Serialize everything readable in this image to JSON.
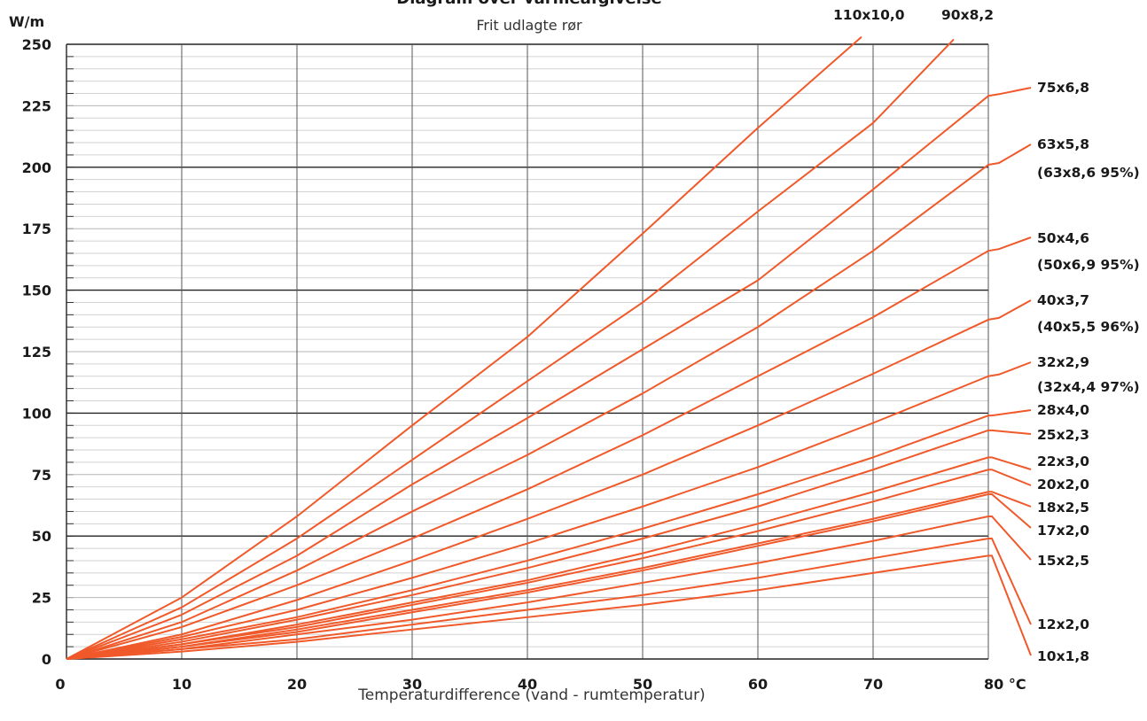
{
  "chart_data": {
    "type": "line",
    "title": "Diagram over varmeafgivelse",
    "subtitle": "Frit udlagte rør",
    "ylabel": "W/m",
    "xlabel": "Temperaturdifference (vand - rumtemperatur)",
    "x_unit_label": "80 °C",
    "xlim": [
      0,
      80
    ],
    "ylim": [
      0,
      250
    ],
    "x_ticks": [
      "0",
      "10",
      "20",
      "30",
      "40",
      "50",
      "60",
      "70"
    ],
    "y_ticks": [
      "0",
      "25",
      "50",
      "75",
      "100",
      "125",
      "150",
      "175",
      "200",
      "225",
      "250"
    ],
    "grid": true,
    "line_color": "#f0592a",
    "series": [
      {
        "name": "110x10,0",
        "points": [
          [
            0,
            0
          ],
          [
            10,
            25
          ],
          [
            20,
            58
          ],
          [
            30,
            95
          ],
          [
            40,
            131
          ],
          [
            50,
            173
          ],
          [
            60,
            216
          ],
          [
            69,
            253
          ]
        ]
      },
      {
        "name": "90x8,2",
        "points": [
          [
            0,
            0
          ],
          [
            10,
            21
          ],
          [
            20,
            49
          ],
          [
            30,
            81
          ],
          [
            40,
            113
          ],
          [
            50,
            145
          ],
          [
            60,
            182
          ],
          [
            70,
            218
          ],
          [
            77,
            252
          ]
        ]
      },
      {
        "name": "75x6,8",
        "points": [
          [
            0,
            0
          ],
          [
            10,
            18
          ],
          [
            20,
            42
          ],
          [
            30,
            71
          ],
          [
            40,
            98
          ],
          [
            50,
            126
          ],
          [
            60,
            154
          ],
          [
            70,
            191
          ],
          [
            80,
            229
          ]
        ]
      },
      {
        "name": "63x5,8",
        "extra": "(63x8,6 95%)",
        "points": [
          [
            0,
            0
          ],
          [
            10,
            15
          ],
          [
            20,
            36
          ],
          [
            30,
            60
          ],
          [
            40,
            83
          ],
          [
            50,
            108
          ],
          [
            60,
            135
          ],
          [
            70,
            166
          ],
          [
            80,
            201
          ]
        ]
      },
      {
        "name": "50x4,6",
        "extra": "(50x6,9 95%)",
        "points": [
          [
            0,
            0
          ],
          [
            10,
            13
          ],
          [
            20,
            30
          ],
          [
            30,
            49
          ],
          [
            40,
            69
          ],
          [
            50,
            91
          ],
          [
            60,
            115
          ],
          [
            70,
            139
          ],
          [
            80,
            166
          ]
        ]
      },
      {
        "name": "40x3,7",
        "extra": "(40x5,5 96%)",
        "points": [
          [
            0,
            0
          ],
          [
            10,
            10
          ],
          [
            20,
            24
          ],
          [
            30,
            40
          ],
          [
            40,
            57
          ],
          [
            50,
            75
          ],
          [
            60,
            95
          ],
          [
            70,
            116
          ],
          [
            80,
            138
          ]
        ]
      },
      {
        "name": "32x2,9",
        "extra": "(32x4,4 97%)",
        "points": [
          [
            0,
            0
          ],
          [
            10,
            9
          ],
          [
            20,
            20
          ],
          [
            30,
            33
          ],
          [
            40,
            47
          ],
          [
            50,
            62
          ],
          [
            60,
            78
          ],
          [
            70,
            96
          ],
          [
            80,
            115
          ]
        ]
      },
      {
        "name": "28x4,0",
        "points": [
          [
            0,
            0
          ],
          [
            10,
            8
          ],
          [
            20,
            17
          ],
          [
            30,
            28
          ],
          [
            40,
            40
          ],
          [
            50,
            53
          ],
          [
            60,
            67
          ],
          [
            70,
            82
          ],
          [
            80,
            99
          ]
        ]
      },
      {
        "name": "25x2,3",
        "points": [
          [
            0,
            0
          ],
          [
            10,
            7
          ],
          [
            20,
            16
          ],
          [
            30,
            26
          ],
          [
            40,
            37
          ],
          [
            50,
            49
          ],
          [
            60,
            62
          ],
          [
            70,
            77
          ],
          [
            80,
            93
          ]
        ]
      },
      {
        "name": "22x3,0",
        "points": [
          [
            0,
            0
          ],
          [
            10,
            6
          ],
          [
            20,
            14
          ],
          [
            30,
            23
          ],
          [
            40,
            32
          ],
          [
            50,
            43
          ],
          [
            60,
            55
          ],
          [
            70,
            68
          ],
          [
            80,
            82
          ]
        ]
      },
      {
        "name": "20x2,0",
        "points": [
          [
            0,
            0
          ],
          [
            10,
            6
          ],
          [
            20,
            13
          ],
          [
            30,
            22
          ],
          [
            40,
            31
          ],
          [
            50,
            41
          ],
          [
            60,
            52
          ],
          [
            70,
            64
          ],
          [
            80,
            77
          ]
        ]
      },
      {
        "name": "18x2,5",
        "points": [
          [
            0,
            0
          ],
          [
            10,
            5
          ],
          [
            20,
            12
          ],
          [
            30,
            20
          ],
          [
            40,
            28
          ],
          [
            50,
            37
          ],
          [
            60,
            47
          ],
          [
            70,
            57
          ],
          [
            80,
            68
          ]
        ]
      },
      {
        "name": "17x2,0",
        "points": [
          [
            0,
            0
          ],
          [
            10,
            5
          ],
          [
            20,
            11
          ],
          [
            30,
            19
          ],
          [
            40,
            27
          ],
          [
            50,
            36
          ],
          [
            60,
            46
          ],
          [
            70,
            56
          ],
          [
            80,
            67
          ]
        ]
      },
      {
        "name": "15x2,5",
        "points": [
          [
            0,
            0
          ],
          [
            10,
            4
          ],
          [
            20,
            10
          ],
          [
            30,
            16
          ],
          [
            40,
            23
          ],
          [
            50,
            31
          ],
          [
            60,
            39
          ],
          [
            70,
            48
          ],
          [
            80,
            58
          ]
        ]
      },
      {
        "name": "12x2,0",
        "points": [
          [
            0,
            0
          ],
          [
            10,
            4
          ],
          [
            20,
            8
          ],
          [
            30,
            14
          ],
          [
            40,
            20
          ],
          [
            50,
            26
          ],
          [
            60,
            33
          ],
          [
            70,
            41
          ],
          [
            80,
            49
          ]
        ]
      },
      {
        "name": "10x1,8",
        "points": [
          [
            0,
            0
          ],
          [
            10,
            3
          ],
          [
            20,
            7
          ],
          [
            30,
            12
          ],
          [
            40,
            17
          ],
          [
            50,
            22
          ],
          [
            60,
            28
          ],
          [
            70,
            35
          ],
          [
            80,
            42
          ]
        ]
      }
    ]
  }
}
